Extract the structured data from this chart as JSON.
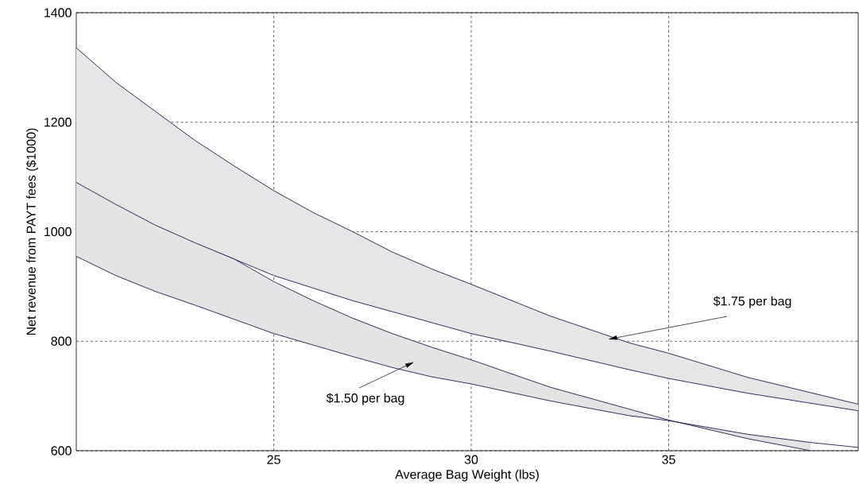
{
  "chart_data": {
    "type": "line",
    "xlabel": "Average Bag Weight (lbs)",
    "ylabel": "Net revenue from PAYT fees ($1000)",
    "xlim": [
      20,
      39.8
    ],
    "ylim": [
      600,
      1400
    ],
    "xticks": [
      25,
      30,
      35
    ],
    "yticks": [
      600,
      800,
      1000,
      1200,
      1400
    ],
    "grid": true,
    "series": [
      {
        "color": "#1a1a50",
        "x": [
          20,
          21,
          22,
          23,
          24,
          25,
          26,
          27,
          28,
          29,
          30,
          32,
          34,
          35,
          37,
          39.8
        ],
        "values": [
          1336,
          1273,
          1220,
          1167,
          1120,
          1075,
          1035,
          1000,
          963,
          932,
          904,
          846,
          797,
          778,
          734,
          685
        ],
        "upper": [
          1336,
          1273,
          1220,
          1167,
          1120,
          1075,
          1035,
          1000,
          963,
          932,
          904,
          846,
          797,
          778,
          734,
          685
        ],
        "lower": [
          1085,
          1046,
          1010,
          979,
          950,
          920,
          897,
          874,
          854,
          834,
          814,
          782,
          748,
          732,
          705,
          673
        ]
      },
      {
        "color": "#1a1a50",
        "x": [
          20,
          21,
          22,
          23,
          24,
          25,
          26,
          27,
          28,
          29,
          30,
          32,
          34,
          35,
          37,
          39.8
        ],
        "values": [
          1085,
          1046,
          1010,
          979,
          950,
          920,
          897,
          874,
          854,
          834,
          814,
          782,
          748,
          732,
          705,
          673
        ]
      },
      {
        "color": "#1a1a50",
        "x": [
          20,
          21,
          22,
          23,
          24,
          25,
          26,
          27,
          28,
          29,
          30,
          32,
          34,
          35,
          37,
          38.6
        ],
        "values": [
          1090,
          1050,
          1012,
          980,
          950,
          909,
          874,
          842,
          814,
          789,
          766,
          716,
          676,
          656,
          622,
          600
        ],
        "upper": [
          1090,
          1050,
          1012,
          980,
          950,
          909,
          874,
          842,
          814,
          789,
          766,
          716,
          676,
          656,
          622,
          600
        ],
        "lower": [
          955,
          920,
          891,
          866,
          840,
          814,
          793,
          772,
          752,
          735,
          722,
          691,
          664,
          655,
          630,
          615
        ]
      },
      {
        "color": "#1a1a50",
        "x": [
          20,
          21,
          22,
          23,
          24,
          25,
          26,
          27,
          28,
          29,
          30,
          32,
          34,
          35,
          37,
          38.6,
          39.8
        ],
        "values": [
          955,
          920,
          891,
          866,
          840,
          814,
          793,
          772,
          752,
          735,
          722,
          691,
          664,
          655,
          630,
          615,
          606
        ]
      }
    ],
    "annotations": [
      {
        "text": "$1.75 per bag",
        "x": 33.65,
        "y": 806
      },
      "$1.50 per bag"
    ]
  }
}
